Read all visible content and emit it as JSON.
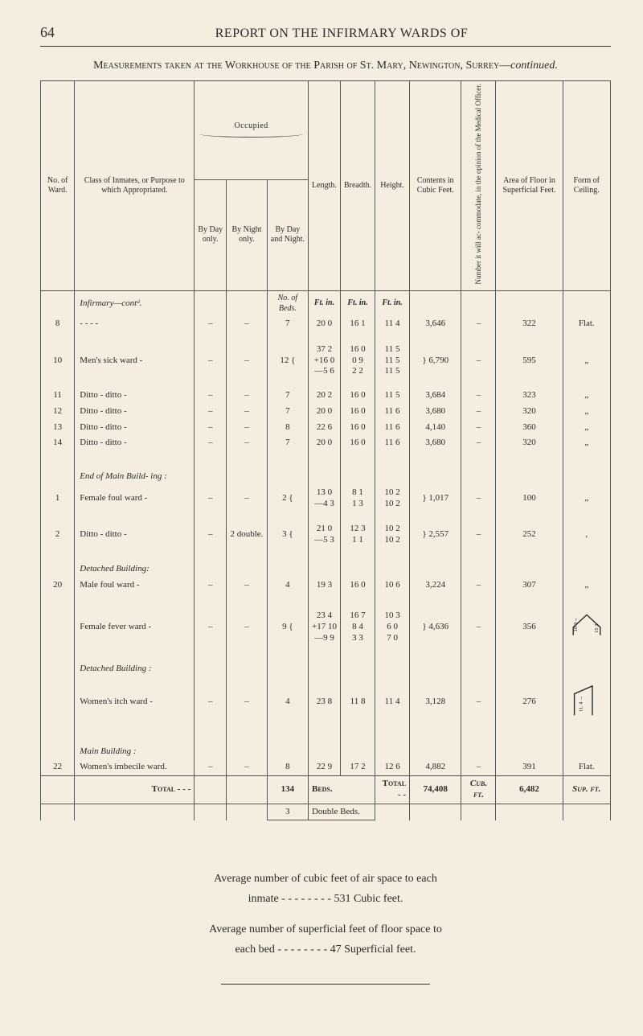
{
  "page_number": "64",
  "running_title": "REPORT ON THE INFIRMARY WARDS OF",
  "caption_plain": "Measurements taken at the Workhouse of the Parish of St. Mary, Newington, Surrey—",
  "caption_italic": "continued.",
  "columns": {
    "ward_no": "No. of Ward.",
    "class": "Class of Inmates, or Purpose to which Appropriated.",
    "occupied": "Occupied",
    "by_day": "By Day only.",
    "by_night": "By Night only.",
    "by_day_night": "By Day and Night.",
    "length": "Length.",
    "breadth": "Breadth.",
    "height": "Height.",
    "contents": "Contents in Cubic Feet.",
    "accom": "Number it will ac- commodate, in the opinion of the Medical Officer.",
    "area": "Area of Floor in Superficial Feet.",
    "form": "Form of Ceiling."
  },
  "unit_row": {
    "nob": "No. of Beds.",
    "ft_in": "Ft.  in."
  },
  "section_infirmary": "Infirmary—contᵈ.",
  "section_end_main": "End of Main Build- ing :",
  "section_detached": "Detached Building:",
  "section_detached2": "Detached Building :",
  "section_main": "Main Building :",
  "rows": [
    {
      "no": "8",
      "class": "-    -    -    -",
      "day": "–",
      "night": "–",
      "dn": "7",
      "L": "20  0",
      "B": "16  1",
      "H": "11  4",
      "C": "3,646",
      "Ac": "–",
      "A": "322",
      "F": "Flat."
    },
    {
      "no": "10",
      "class": "Men's sick ward   -",
      "day": "–",
      "night": "–",
      "dn": "12 {",
      "L": "37  2\n+16  0\n—5  6",
      "B": "16  0\n0  9\n2  2",
      "H": "11  5\n11  5\n11  5",
      "C": "} 6,790",
      "Ac": "–",
      "A": "595",
      "F": "„"
    },
    {
      "no": "11",
      "class": "Ditto  -  ditto   -",
      "day": "–",
      "night": "–",
      "dn": "7",
      "L": "20  2",
      "B": "16  0",
      "H": "11  5",
      "C": "3,684",
      "Ac": "–",
      "A": "323",
      "F": "„"
    },
    {
      "no": "12",
      "class": "Ditto  -  ditto   -",
      "day": "–",
      "night": "–",
      "dn": "7",
      "L": "20  0",
      "B": "16  0",
      "H": "11  6",
      "C": "3,680",
      "Ac": "–",
      "A": "320",
      "F": "„"
    },
    {
      "no": "13",
      "class": "Ditto  -  ditto   -",
      "day": "–",
      "night": "–",
      "dn": "8",
      "L": "22  6",
      "B": "16  0",
      "H": "11  6",
      "C": "4,140",
      "Ac": "–",
      "A": "360",
      "F": "„"
    },
    {
      "no": "14",
      "class": "Ditto  -  ditto   -",
      "day": "–",
      "night": "–",
      "dn": "7",
      "L": "20  0",
      "B": "16  0",
      "H": "11  6",
      "C": "3,680",
      "Ac": "–",
      "A": "320",
      "F": "„"
    },
    {
      "no": "1",
      "class": "Female foul ward  -",
      "day": "–",
      "night": "–",
      "dn": "2 {",
      "L": "13  0\n—4  3",
      "B": "8  1\n1  3",
      "H": "10  2\n10  2",
      "C": "} 1,017",
      "Ac": "–",
      "A": "100",
      "F": "„"
    },
    {
      "no": "2",
      "class": "Ditto  -  ditto   -",
      "day": "–",
      "night": "2 double.",
      "dn": "3 {",
      "L": "21  0\n—5  3",
      "B": "12  3\n1  1",
      "H": "10  2\n10  2",
      "C": "} 2,557",
      "Ac": "–",
      "A": "252",
      "F": ","
    },
    {
      "no": "20",
      "class": "Male foul ward    -",
      "day": "–",
      "night": "–",
      "dn": "4",
      "L": "19  3",
      "B": "16  0",
      "H": "10  6",
      "C": "3,224",
      "Ac": "–",
      "A": "307",
      "F": "„"
    },
    {
      "no": "",
      "class": "Female fever ward -",
      "day": "–",
      "night": "–",
      "dn": "9 {",
      "L": "23  4\n+17 10\n—9  9",
      "B": "16  7\n8  4\n3  3",
      "H": "10  3\n6  0\n7  0",
      "C": "} 4,636",
      "Ac": "–",
      "A": "356",
      "F": "__FIG1__"
    },
    {
      "no": "",
      "class": "Women's itch ward -",
      "day": "–",
      "night": "–",
      "dn": "4",
      "L": "23  8",
      "B": "11  8",
      "H": "11  4",
      "C": "3,128",
      "Ac": "–",
      "A": "276",
      "F": "__FIG2__"
    },
    {
      "no": "22",
      "class": "Women's   imbecile ward.",
      "day": "–",
      "night": "–",
      "dn": "8",
      "L": "22  9",
      "B": "17  2",
      "H": "12  6",
      "C": "4,882",
      "Ac": "–",
      "A": "391",
      "F": "Flat."
    }
  ],
  "totals": {
    "label": "Total  -  -  -",
    "dn": "134",
    "beds": "Beds.",
    "totlabel": "Total  -  -",
    "cubic": "74,408",
    "cubft": "Cub. ft.",
    "area": "6,482",
    "supft": "Sup. ft."
  },
  "double_beds_row": {
    "dn": "3",
    "label": "Double Beds."
  },
  "footer": {
    "l1": "Average number of cubic feet of air space to each",
    "l2": "inmate    -    -    -    -    -    -    -    -   531 Cubic feet.",
    "l3": "Average number of superficial feet of floor space to",
    "l4": "each bed -    -    -    -    -    -    -    -    47 Superficial feet."
  },
  "colors": {
    "bg": "#f4ede0",
    "ink": "#2b2b28",
    "rule": "#333333"
  }
}
